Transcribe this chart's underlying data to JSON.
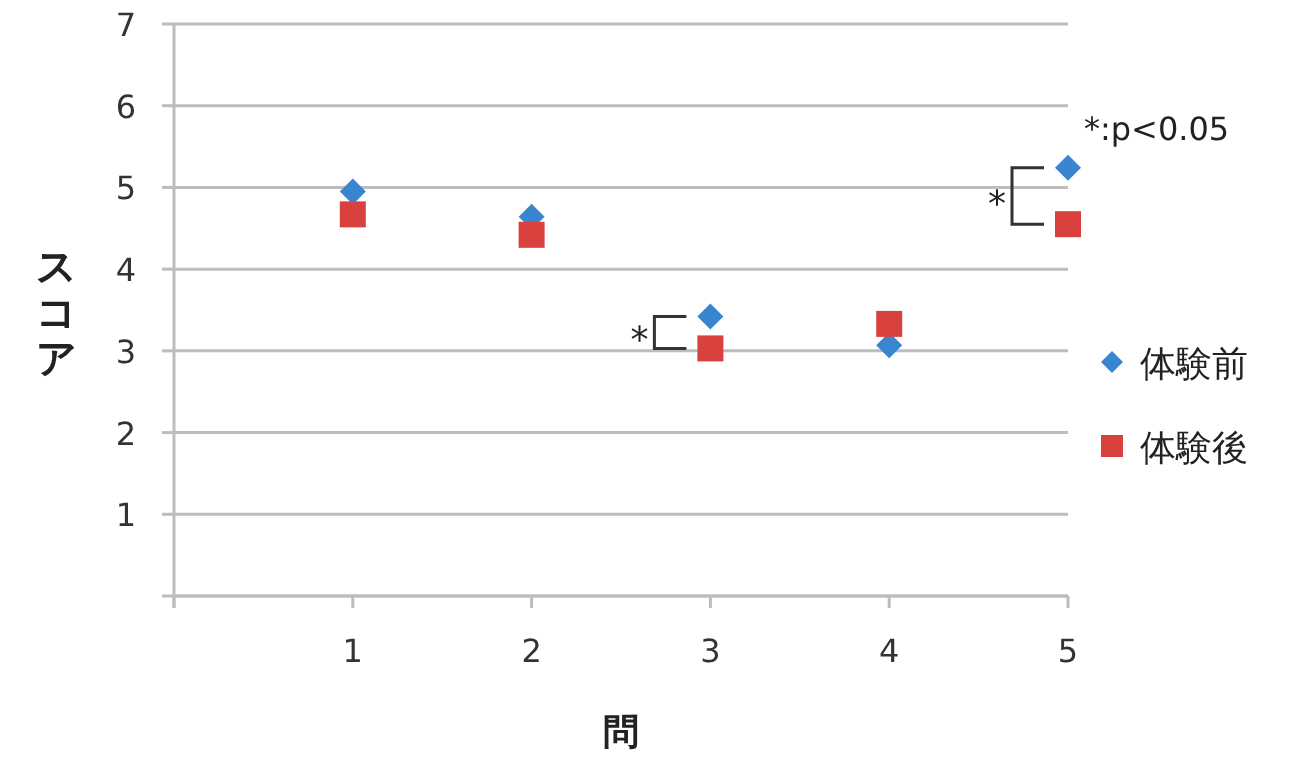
{
  "chart_data": {
    "type": "scatter",
    "xlabel": "問",
    "ylabel": "スコア",
    "x": [
      1,
      2,
      3,
      4,
      5
    ],
    "series": [
      {
        "name": "体験前",
        "color": "#3a85d0",
        "marker": "diamond",
        "values": [
          4.95,
          4.64,
          3.42,
          3.07,
          5.24
        ]
      },
      {
        "name": "体験後",
        "color": "#d9413f",
        "marker": "square",
        "values": [
          4.67,
          4.42,
          3.03,
          3.33,
          4.55
        ]
      }
    ],
    "xlim": [
      0,
      5
    ],
    "xticks": [
      {
        "value": 0,
        "label": null
      },
      1,
      2,
      3,
      4,
      5
    ],
    "ylim": [
      0,
      7
    ],
    "yticks": [
      {
        "value": 0,
        "label": null
      },
      1,
      2,
      3,
      4,
      5,
      6,
      7
    ],
    "grid": "y",
    "legend": "right",
    "annotations": [
      "*:p<0.05",
      {
        "text": "*",
        "x": 3
      },
      {
        "text": "*",
        "x": 5
      }
    ]
  }
}
